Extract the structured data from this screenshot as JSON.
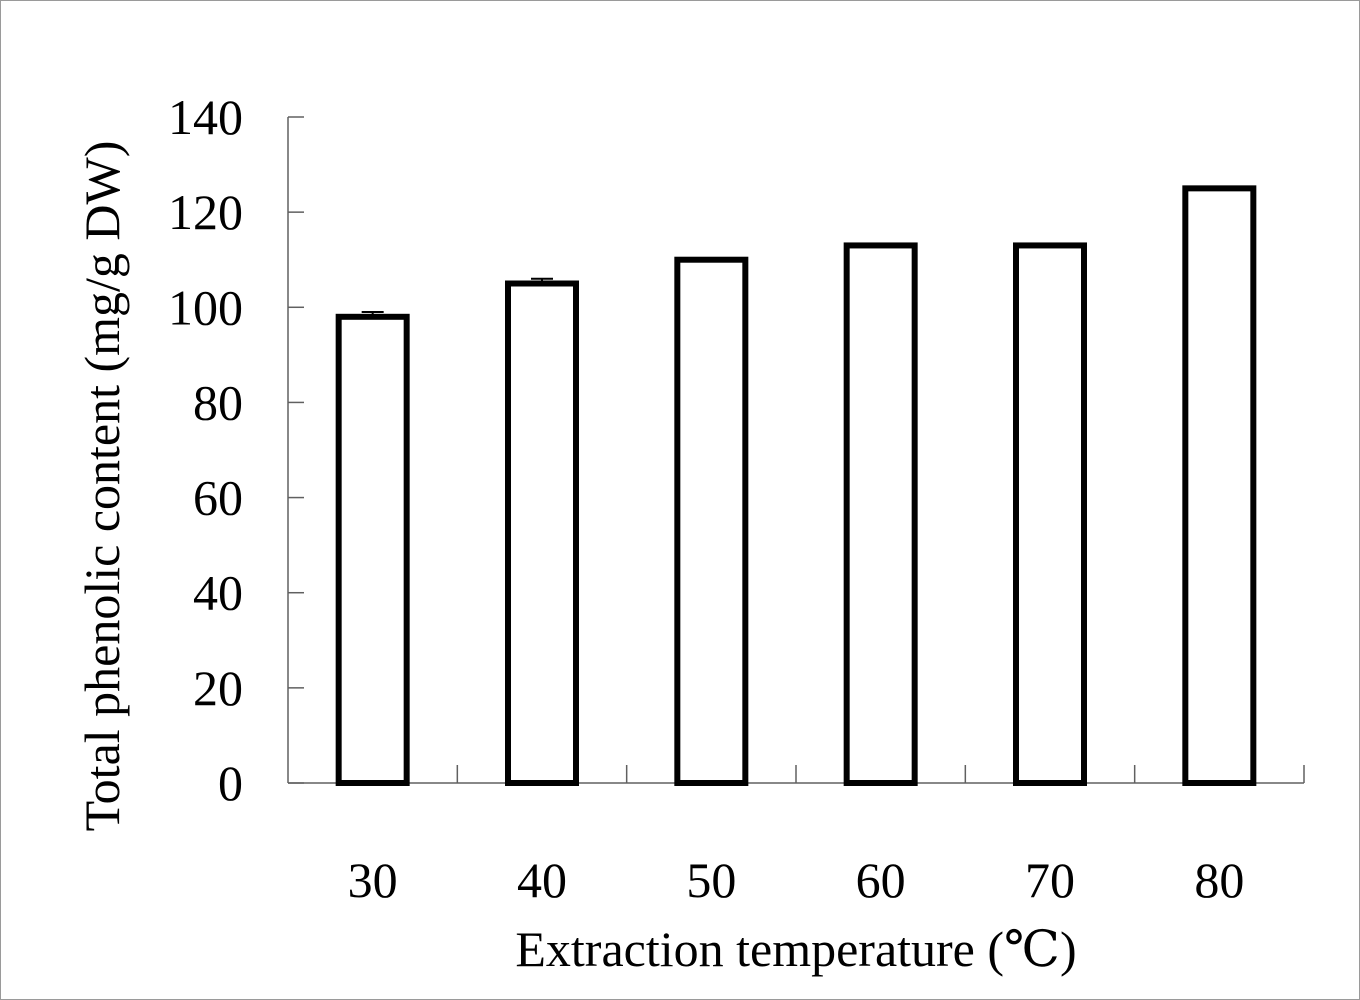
{
  "chart_data": {
    "type": "bar",
    "title": "",
    "xlabel": "Extraction temperature (℃)",
    "ylabel": "Total phenolic content (mg/g DW)",
    "categories": [
      "30",
      "40",
      "50",
      "60",
      "70",
      "80"
    ],
    "values": [
      98,
      105,
      110,
      113,
      113,
      125
    ],
    "errors": [
      1,
      1,
      0,
      0,
      0,
      0
    ],
    "ylim": [
      0,
      140
    ],
    "yticks": [
      "0",
      "20",
      "40",
      "60",
      "80",
      "100",
      "120",
      "140"
    ],
    "grid": false,
    "legend": "none",
    "bar_fill": "#ffffff",
    "bar_stroke": "#000000",
    "axis_color": "#606060"
  }
}
